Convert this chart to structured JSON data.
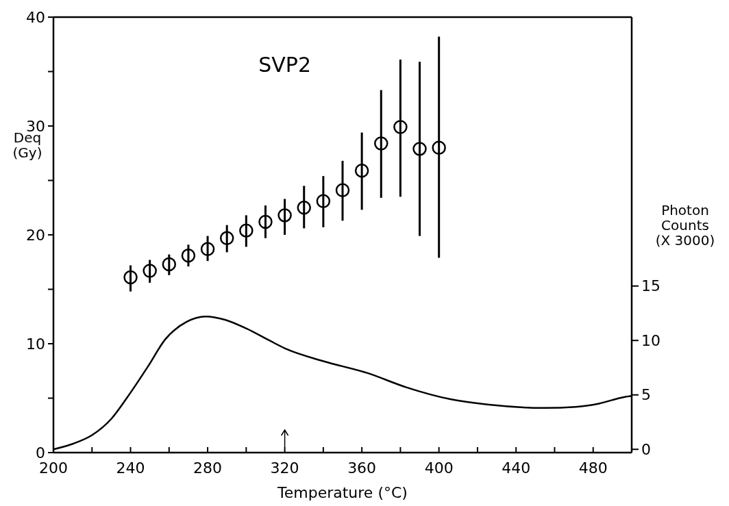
{
  "chart_data": {
    "type": "scatter",
    "title": "SVP2",
    "xlabel": "Temperature (°C)",
    "ylabel": "Deq\n(Gy)",
    "y2label": "Photon\nCounts\n(X 3000)",
    "xlim": [
      200,
      500
    ],
    "xticks": [
      200,
      {
        "value": 220,
        "label": null
      },
      240,
      {
        "value": 260,
        "label": null
      },
      280,
      {
        "value": 300,
        "label": null
      },
      320,
      {
        "value": 340,
        "label": null
      },
      360,
      {
        "value": 380,
        "label": null
      },
      400,
      {
        "value": 420,
        "label": null
      },
      440,
      {
        "value": 460,
        "label": null
      },
      480
    ],
    "ylim": [
      0,
      40
    ],
    "yticks": [
      0,
      {
        "value": 5,
        "label": null
      },
      10,
      {
        "value": 15,
        "label": null
      },
      20,
      {
        "value": 25,
        "label": null
      },
      30,
      {
        "value": 35,
        "label": null
      },
      40
    ],
    "y2lim": [
      -0.3,
      39.7
    ],
    "y2ticks": [
      0,
      5,
      10,
      15
    ],
    "grid": false,
    "series": [
      {
        "color": "#000000",
        "marker": "circle",
        "x": [
          240,
          250,
          260,
          270,
          280,
          290,
          300,
          310,
          320,
          330,
          340,
          350,
          360,
          370,
          380,
          390,
          400
        ],
        "values": [
          16.1,
          16.7,
          17.3,
          18.1,
          18.7,
          19.7,
          20.4,
          21.2,
          21.8,
          22.5,
          23.1,
          24.1,
          25.9,
          28.4,
          29.9,
          27.9,
          28.0
        ],
        "errors": [
          [
            14.8,
            17.2
          ],
          [
            15.6,
            17.7
          ],
          [
            16.3,
            18.2
          ],
          [
            17.1,
            19.1
          ],
          [
            17.6,
            19.9
          ],
          [
            18.4,
            20.9
          ],
          [
            18.9,
            21.8
          ],
          [
            19.7,
            22.7
          ],
          [
            20.0,
            23.3
          ],
          [
            20.6,
            24.5
          ],
          [
            20.7,
            25.4
          ],
          [
            21.3,
            26.8
          ],
          [
            22.3,
            29.4
          ],
          [
            23.4,
            33.3
          ],
          [
            23.5,
            36.1
          ],
          [
            19.9,
            35.9
          ],
          [
            17.9,
            38.2
          ]
        ]
      },
      {
        "type": "line",
        "axis": "y2",
        "color": "#000000",
        "marker": "none",
        "line_style": "solid",
        "x": [
          200,
          210,
          220,
          230,
          238,
          249,
          258,
          269,
          279,
          289,
          300,
          312,
          321,
          340,
          363,
          383,
          406,
          426,
          455,
          471,
          483,
          496,
          500
        ],
        "values": [
          0.0,
          0.5,
          1.3,
          2.8,
          4.7,
          7.6,
          10.1,
          11.7,
          12.2,
          11.9,
          11.1,
          10.0,
          9.2,
          8.1,
          7.0,
          5.7,
          4.6,
          4.1,
          3.8,
          3.9,
          4.2,
          4.8,
          4.9
        ]
      }
    ]
  }
}
